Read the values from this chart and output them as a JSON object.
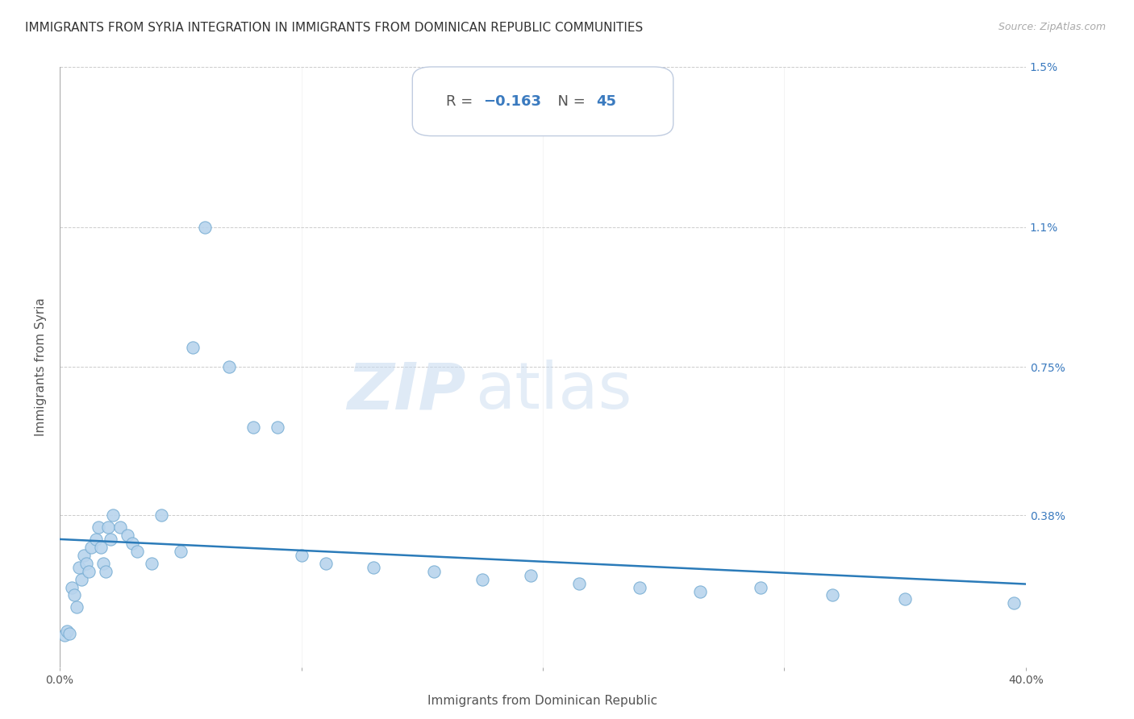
{
  "title": "IMMIGRANTS FROM SYRIA INTEGRATION IN IMMIGRANTS FROM DOMINICAN REPUBLIC COMMUNITIES",
  "source": "Source: ZipAtlas.com",
  "xlabel": "Immigrants from Dominican Republic",
  "ylabel": "Immigrants from Syria",
  "r_value": -0.163,
  "n_value": 45,
  "xlim": [
    0.0,
    0.4
  ],
  "ylim": [
    0.0,
    0.015
  ],
  "x_ticks": [
    0.0,
    0.1,
    0.2,
    0.3,
    0.4
  ],
  "x_tick_labels": [
    "0.0%",
    "",
    "",
    "",
    "40.0%"
  ],
  "y_ticks": [
    0.0,
    0.0038,
    0.0075,
    0.011,
    0.015
  ],
  "y_tick_labels": [
    "",
    "0.38%",
    "0.75%",
    "1.1%",
    "1.5%"
  ],
  "scatter_color": "#b8d4ed",
  "scatter_edgecolor": "#7aafd4",
  "line_color": "#2b7bb9",
  "background_color": "#ffffff",
  "watermark_zip": "ZIP",
  "watermark_atlas": "atlas",
  "scatter_x": [
    0.002,
    0.003,
    0.004,
    0.005,
    0.006,
    0.007,
    0.008,
    0.009,
    0.01,
    0.011,
    0.012,
    0.013,
    0.015,
    0.016,
    0.017,
    0.018,
    0.019,
    0.02,
    0.021,
    0.022,
    0.025,
    0.028,
    0.03,
    0.032,
    0.038,
    0.042,
    0.05,
    0.055,
    0.06,
    0.07,
    0.08,
    0.09,
    0.1,
    0.11,
    0.13,
    0.155,
    0.175,
    0.195,
    0.215,
    0.24,
    0.265,
    0.29,
    0.32,
    0.35,
    0.395
  ],
  "scatter_y": [
    0.0008,
    0.0009,
    0.00085,
    0.002,
    0.0018,
    0.0015,
    0.0025,
    0.0022,
    0.0028,
    0.0026,
    0.0024,
    0.003,
    0.0032,
    0.0035,
    0.003,
    0.0026,
    0.0024,
    0.0035,
    0.0032,
    0.0038,
    0.0035,
    0.0033,
    0.0031,
    0.0029,
    0.0026,
    0.0038,
    0.0029,
    0.008,
    0.011,
    0.0075,
    0.006,
    0.006,
    0.0028,
    0.0026,
    0.0025,
    0.0024,
    0.0022,
    0.0023,
    0.0021,
    0.002,
    0.0019,
    0.002,
    0.0018,
    0.0017,
    0.0016
  ],
  "grid_color": "#cccccc",
  "title_fontsize": 11,
  "axis_label_fontsize": 11,
  "tick_fontsize": 10,
  "line_intercept": 0.0032,
  "line_slope": -0.0028
}
